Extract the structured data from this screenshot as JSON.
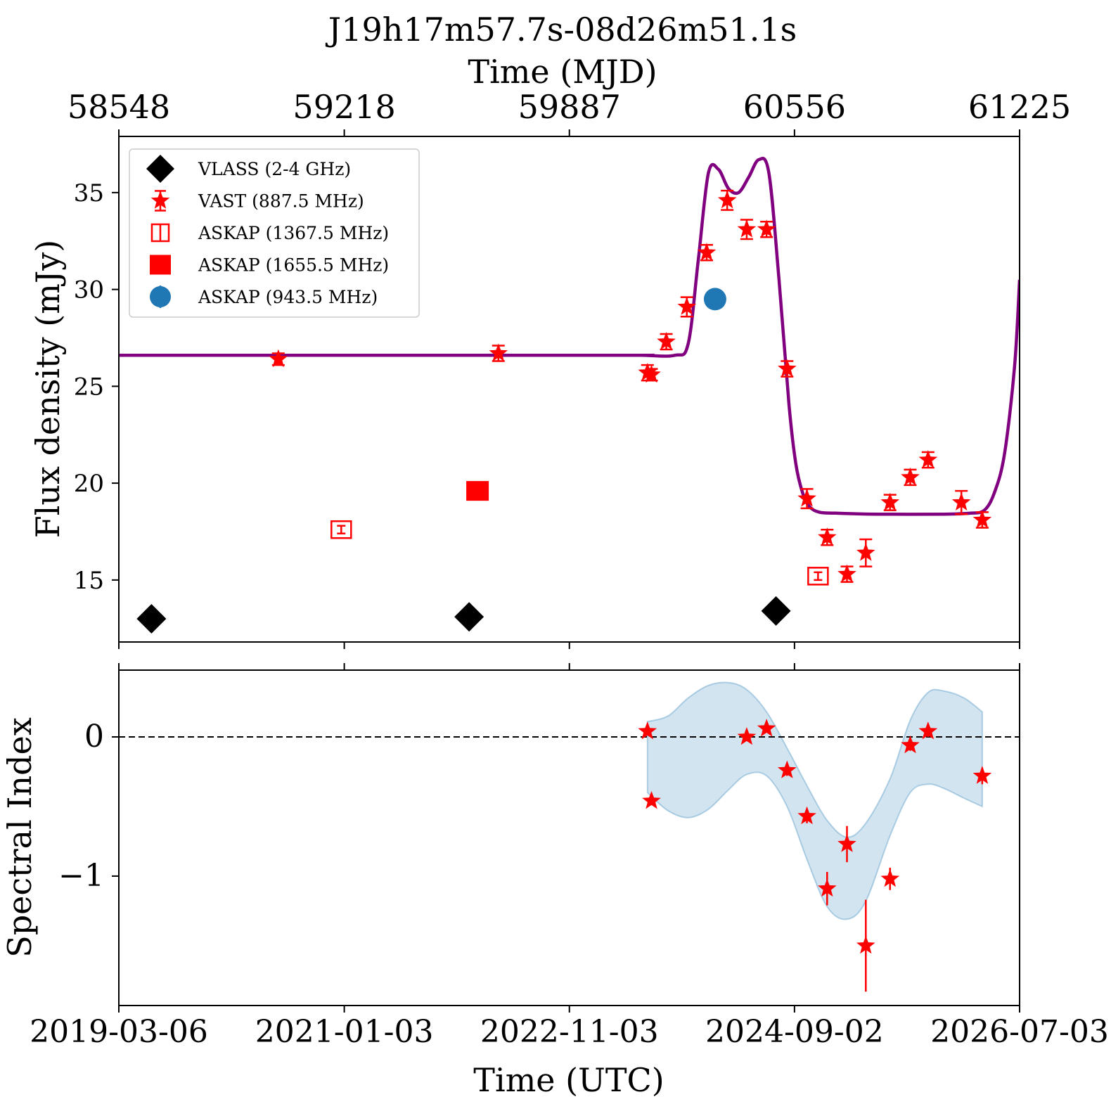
{
  "figure": {
    "title": "J19h17m57.7s-08d26m51.1s",
    "top_axis_label": "Time (MJD)",
    "top_ticks": [
      "58548",
      "59218",
      "59887",
      "60556",
      "61225"
    ],
    "bottom_axis_label": "Time (UTC)",
    "bottom_ticks": [
      "2019-03-06",
      "2021-01-03",
      "2022-11-03",
      "2024-09-02",
      "2026-07-03"
    ]
  },
  "legend": [
    {
      "label": "VLASS (2-4 GHz)",
      "marker": "diamond",
      "color": "#000000"
    },
    {
      "label": "VAST (887.5 MHz)",
      "marker": "star",
      "color": "#ff0000"
    },
    {
      "label": "ASKAP (1367.5 MHz)",
      "marker": "open-square",
      "color": "#ff0000"
    },
    {
      "label": "ASKAP (1655.5 MHz)",
      "marker": "square",
      "color": "#ff0000"
    },
    {
      "label": "ASKAP (943.5 MHz)",
      "marker": "circle",
      "color": "#1f77b4"
    }
  ],
  "chart_data": [
    {
      "type": "scatter",
      "panel": "top",
      "ylabel": "Flux density (mJy)",
      "xlim": [
        58548,
        61225
      ],
      "ylim": [
        11.8,
        37.9
      ],
      "yticks": [
        15,
        20,
        25,
        30,
        35
      ],
      "colors": {
        "vlass": "#000000",
        "vast": "#ff0000",
        "askap": "#ff0000",
        "askap943": "#1f77b4",
        "model": "#800080"
      },
      "series": [
        {
          "name": "VLASS (2-4 GHz)",
          "points": [
            {
              "x": 58645,
              "y": 13.0
            },
            {
              "x": 59589,
              "y": 13.1
            },
            {
              "x": 60501,
              "y": 13.4
            }
          ]
        },
        {
          "name": "VAST (887.5 MHz)",
          "points": [
            {
              "x": 59022,
              "y": 26.4,
              "err": 0.3
            },
            {
              "x": 59676,
              "y": 26.7,
              "err": 0.4
            },
            {
              "x": 60119,
              "y": 25.7,
              "err": 0.4
            },
            {
              "x": 60131,
              "y": 25.6,
              "err": 0.3
            },
            {
              "x": 60175,
              "y": 27.3,
              "err": 0.4
            },
            {
              "x": 60236,
              "y": 29.1,
              "err": 0.5
            },
            {
              "x": 60295,
              "y": 31.9,
              "err": 0.4
            },
            {
              "x": 60356,
              "y": 34.6,
              "err": 0.5
            },
            {
              "x": 60414,
              "y": 33.1,
              "err": 0.5
            },
            {
              "x": 60473,
              "y": 33.1,
              "err": 0.4
            },
            {
              "x": 60534,
              "y": 25.9,
              "err": 0.4
            },
            {
              "x": 60593,
              "y": 19.2,
              "err": 0.5
            },
            {
              "x": 60653,
              "y": 17.2,
              "err": 0.4
            },
            {
              "x": 60712,
              "y": 15.3,
              "err": 0.4
            },
            {
              "x": 60768,
              "y": 16.4,
              "err": 0.7
            },
            {
              "x": 60840,
              "y": 19.0,
              "err": 0.4
            },
            {
              "x": 60900,
              "y": 20.3,
              "err": 0.4
            },
            {
              "x": 60953,
              "y": 21.2,
              "err": 0.4
            },
            {
              "x": 61052,
              "y": 19.0,
              "err": 0.6
            },
            {
              "x": 61114,
              "y": 18.1,
              "err": 0.4
            }
          ]
        },
        {
          "name": "ASKAP (1367.5 MHz)",
          "points": [
            {
              "x": 59209,
              "y": 17.6,
              "err": 0.2
            },
            {
              "x": 60626,
              "y": 15.2,
              "err": 0.2
            }
          ]
        },
        {
          "name": "ASKAP (1655.5 MHz)",
          "points": [
            {
              "x": 59614,
              "y": 19.6
            }
          ]
        },
        {
          "name": "ASKAP (943.5 MHz)",
          "points": [
            {
              "x": 60320,
              "y": 29.5
            }
          ]
        }
      ],
      "model_curve": {
        "x": [
          58548,
          60000,
          60100,
          60200,
          60240,
          60270,
          60300,
          60330,
          60360,
          60390,
          60420,
          60450,
          60480,
          60510,
          60540,
          60560,
          60580,
          60600,
          60630,
          60680,
          60800,
          61000,
          61080,
          61120,
          61150,
          61180,
          61210,
          61225
        ],
        "y": [
          26.6,
          26.6,
          26.6,
          26.6,
          27.2,
          31.5,
          36.0,
          36.2,
          35.2,
          35.0,
          35.8,
          36.7,
          36.0,
          30.5,
          24.0,
          21.0,
          19.5,
          18.8,
          18.5,
          18.45,
          18.4,
          18.4,
          18.45,
          18.6,
          19.5,
          21.5,
          26.0,
          30.5
        ]
      }
    },
    {
      "type": "scatter",
      "panel": "bottom",
      "ylabel": "Spectral Index",
      "xlim": [
        58548,
        61225
      ],
      "ylim": [
        -1.93,
        0.48
      ],
      "yticks": [
        -1,
        0
      ],
      "reference_line": 0,
      "colors": {
        "points": "#ff0000",
        "band": "#1f77b4"
      },
      "series": [
        {
          "name": "",
          "points": [
            {
              "x": 60119,
              "y": 0.04,
              "err": 0.03
            },
            {
              "x": 60131,
              "y": -0.46,
              "err": 0.03
            },
            {
              "x": 60414,
              "y": 0.0,
              "err": 0.03
            },
            {
              "x": 60473,
              "y": 0.06,
              "err": 0.03
            },
            {
              "x": 60534,
              "y": -0.24,
              "err": 0.04
            },
            {
              "x": 60593,
              "y": -0.57,
              "err": 0.05
            },
            {
              "x": 60653,
              "y": -1.09,
              "err": 0.12
            },
            {
              "x": 60712,
              "y": -0.77,
              "err": 0.13
            },
            {
              "x": 60768,
              "y": -1.5,
              "err": 0.33
            },
            {
              "x": 60840,
              "y": -1.02,
              "err": 0.08
            },
            {
              "x": 60900,
              "y": -0.06,
              "err": 0.04
            },
            {
              "x": 60953,
              "y": 0.04,
              "err": 0.04
            },
            {
              "x": 61114,
              "y": -0.28,
              "err": 0.06
            }
          ]
        }
      ],
      "band": {
        "x": [
          60119,
          60180,
          60240,
          60300,
          60360,
          60414,
          60473,
          60534,
          60593,
          60653,
          60712,
          60768,
          60840,
          60900,
          60953,
          61000,
          61060,
          61114
        ],
        "upper": [
          0.11,
          0.15,
          0.28,
          0.37,
          0.39,
          0.34,
          0.18,
          -0.08,
          -0.35,
          -0.6,
          -0.72,
          -0.62,
          -0.3,
          0.12,
          0.32,
          0.33,
          0.28,
          0.18
        ],
        "lower": [
          -0.4,
          -0.53,
          -0.58,
          -0.52,
          -0.38,
          -0.27,
          -0.28,
          -0.5,
          -0.88,
          -1.22,
          -1.31,
          -1.18,
          -0.71,
          -0.4,
          -0.34,
          -0.37,
          -0.44,
          -0.5
        ]
      }
    }
  ]
}
